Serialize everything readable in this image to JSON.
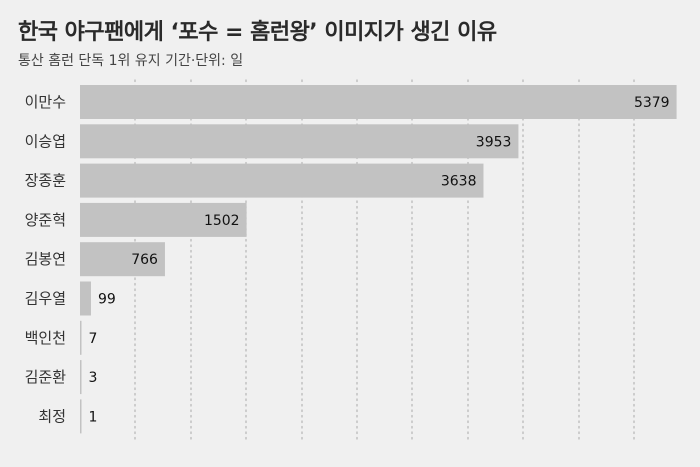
{
  "header": {
    "title": "한국 야구팬에게 ‘포수 = 홈런왕’ 이미지가 생긴 이유",
    "subtitle": "통산 홈런 단독 1위 유지 기간·단위: 일"
  },
  "colors": {
    "background": "#f0f0f0",
    "bar": "#c2c2c2",
    "grid": "#b5b5b5"
  },
  "chart_data": {
    "type": "bar",
    "orientation": "horizontal",
    "categories": [
      "이만수",
      "이승엽",
      "장종훈",
      "양준혁",
      "김봉연",
      "김우열",
      "백인천",
      "김준환",
      "최정"
    ],
    "values": [
      5379,
      3953,
      3638,
      1502,
      766,
      99,
      7,
      3,
      1
    ],
    "title": "한국 야구팬에게 ‘포수 = 홈런왕’ 이미지가 생긴 이유",
    "subtitle": "통산 홈런 단독 1위 유지 기간·단위: 일",
    "xlim": [
      0,
      5500
    ],
    "grid": true,
    "legend": "none"
  }
}
